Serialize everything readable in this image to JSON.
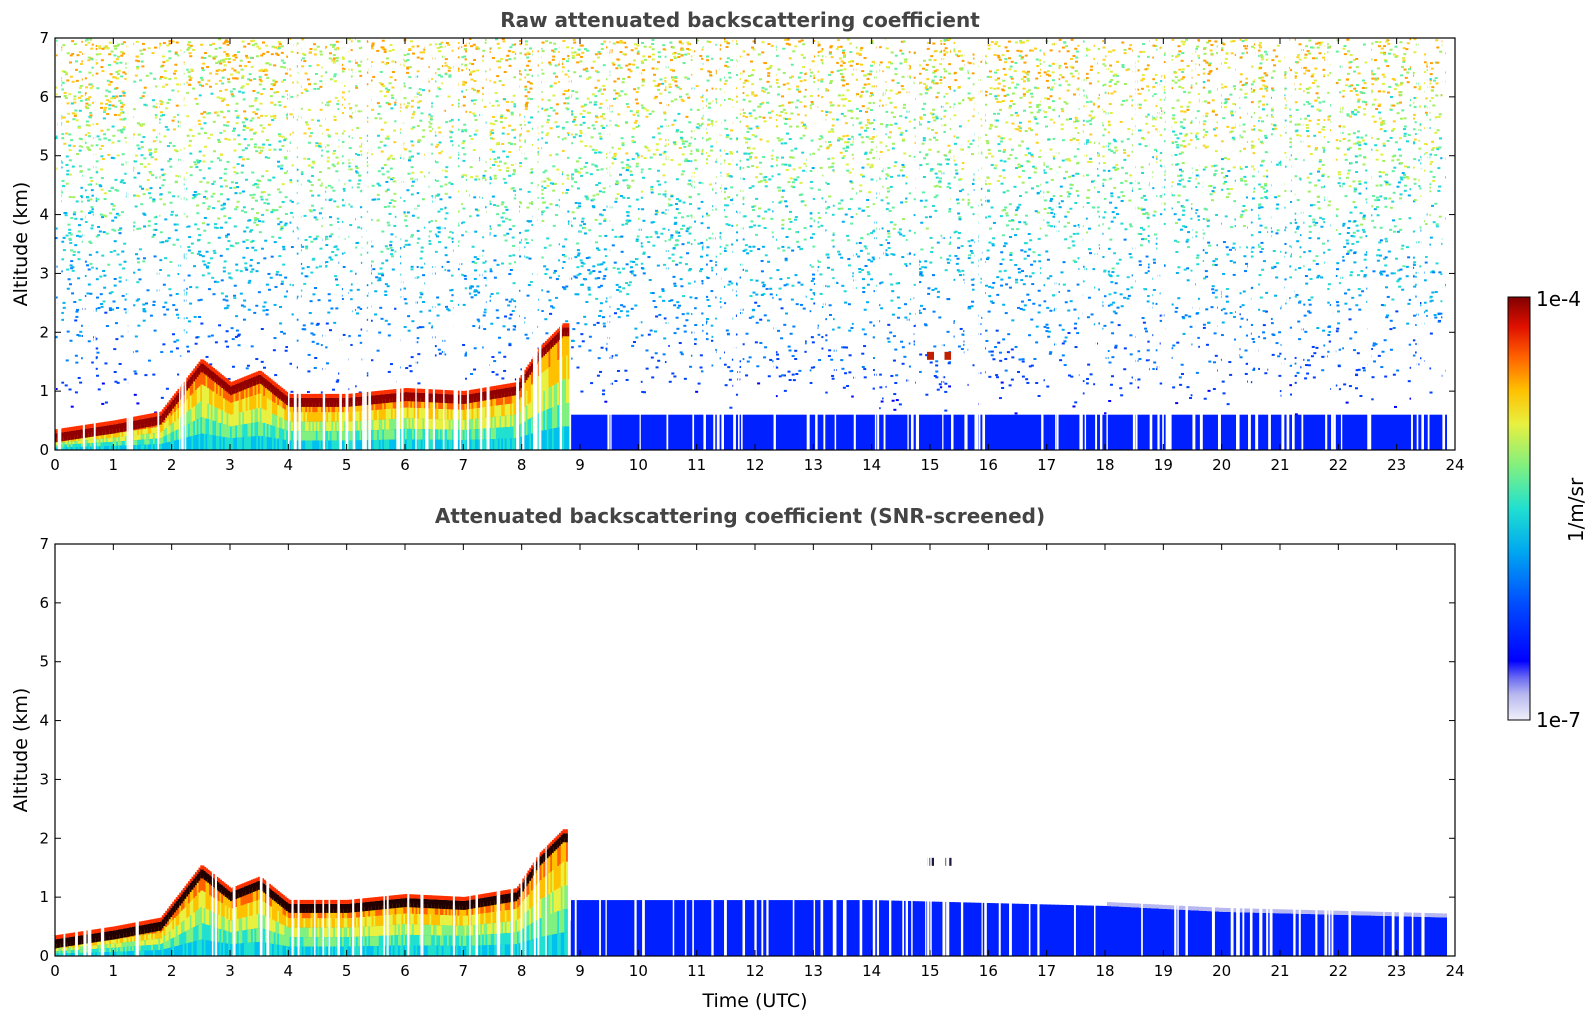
{
  "chart_data": [
    {
      "type": "heatmap",
      "title": "Raw attenuated backscattering coefficient",
      "xlabel": "",
      "ylabel": "Altitude (km)",
      "xlim": [
        0,
        24
      ],
      "ylim": [
        0,
        7
      ],
      "xticks": [
        0,
        1,
        2,
        3,
        4,
        5,
        6,
        7,
        8,
        9,
        10,
        11,
        12,
        13,
        14,
        15,
        16,
        17,
        18,
        19,
        20,
        21,
        22,
        23,
        24
      ],
      "yticks": [
        0,
        1,
        2,
        3,
        4,
        5,
        6,
        7
      ],
      "screened": false,
      "layer_features": [
        {
          "name": "boundary layer top",
          "time": [
            0,
            1,
            1.8,
            2.5,
            3,
            3.5,
            4,
            5,
            6,
            7,
            7.9,
            8.3,
            8.7
          ],
          "altitude": [
            0.2,
            0.35,
            0.5,
            1.4,
            1.0,
            1.2,
            0.8,
            0.8,
            0.9,
            0.85,
            1.0,
            1.6,
            2.0
          ]
        },
        {
          "name": "aerosol layer 15 UTC",
          "time": [
            15.0,
            15.3
          ],
          "altitude": [
            1.6,
            1.6
          ]
        }
      ],
      "noise_floor_top_km": 0.6
    },
    {
      "type": "heatmap",
      "title": "Attenuated backscattering coefficient (SNR-screened)",
      "xlabel": "Time (UTC)",
      "ylabel": "Altitude (km)",
      "xlim": [
        0,
        24
      ],
      "ylim": [
        0,
        7
      ],
      "xticks": [
        0,
        1,
        2,
        3,
        4,
        5,
        6,
        7,
        8,
        9,
        10,
        11,
        12,
        13,
        14,
        15,
        16,
        17,
        18,
        19,
        20,
        21,
        22,
        23,
        24
      ],
      "yticks": [
        0,
        1,
        2,
        3,
        4,
        5,
        6,
        7
      ],
      "screened": true,
      "layer_features": [
        {
          "name": "boundary layer top",
          "time": [
            0,
            1,
            1.8,
            2.5,
            3,
            3.5,
            4,
            5,
            6,
            7,
            7.9,
            8.3,
            8.7
          ],
          "altitude": [
            0.2,
            0.35,
            0.5,
            1.4,
            1.0,
            1.2,
            0.8,
            0.8,
            0.9,
            0.85,
            1.0,
            1.6,
            2.0
          ]
        },
        {
          "name": "aerosol layer 15 UTC",
          "time": [
            15.0,
            15.3
          ],
          "altitude": [
            1.6,
            1.6
          ]
        }
      ],
      "blue_layer_top_km": [
        [
          9,
          0.95
        ],
        [
          14,
          0.95
        ],
        [
          18,
          0.85
        ],
        [
          20,
          0.75
        ],
        [
          24,
          0.65
        ]
      ]
    }
  ],
  "colorbar": {
    "label": "1/m/sr",
    "max_label": "1e-4",
    "min_label": "1e-7",
    "scale": "log",
    "range": [
      1e-07,
      0.0001
    ],
    "colors": [
      "#f0f0fa",
      "#b8b8f0",
      "#7070f0",
      "#0000ff",
      "#0066ff",
      "#00b0f0",
      "#20e0d0",
      "#80f080",
      "#e8f040",
      "#ffc000",
      "#ff6000",
      "#e01000",
      "#800000"
    ]
  }
}
